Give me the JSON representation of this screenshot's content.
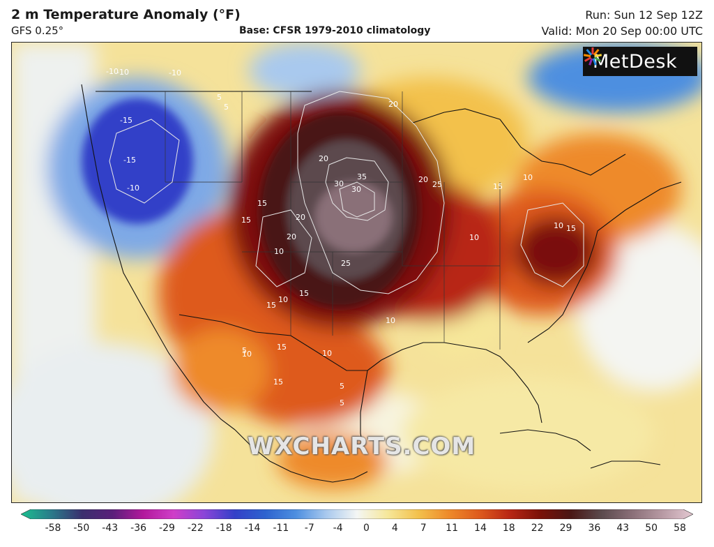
{
  "header": {
    "title": "2 m Temperature Anomaly (°F)",
    "model": "GFS 0.25°",
    "base": "Base: CFSR 1979-2010 climatology",
    "run": "Run: Sun 12 Sep 12Z",
    "valid": "Valid: Mon 20 Sep 00:00 UTC"
  },
  "logo": {
    "text": "MetDesk"
  },
  "watermark": "WXCHARTS.COM",
  "colorbar": {
    "ticks": [
      "-58",
      "-50",
      "-43",
      "-36",
      "-29",
      "-22",
      "-18",
      "-14",
      "-11",
      "-7",
      "-4",
      "0",
      "4",
      "7",
      "11",
      "14",
      "18",
      "22",
      "29",
      "36",
      "43",
      "50",
      "58"
    ],
    "colors": [
      "#1bbf8f",
      "#2a7a8a",
      "#3a2f6e",
      "#5a1f7a",
      "#b2199c",
      "#cf3ec8",
      "#8a45d8",
      "#3340c8",
      "#2d63cf",
      "#4d8fe0",
      "#a9c9ee",
      "#f4f6f4",
      "#f6e79a",
      "#f3c14c",
      "#ee8a2a",
      "#de5a1c",
      "#b82614",
      "#7a1108",
      "#4a1715",
      "#5b4a4d",
      "#8a6f78",
      "#b89aa4",
      "#e4c9d2"
    ]
  },
  "contour_labels": [
    "-10",
    "-10",
    "-10",
    "-15",
    "-15",
    "-10",
    "5",
    "5",
    "20",
    "20",
    "30",
    "20",
    "35",
    "30",
    "25",
    "15",
    "15",
    "20",
    "20",
    "25",
    "15",
    "10",
    "10",
    "10",
    "15",
    "10",
    "15",
    "10",
    "15",
    "10",
    "5",
    "5",
    "5",
    "15",
    "10",
    "10",
    "15"
  ]
}
